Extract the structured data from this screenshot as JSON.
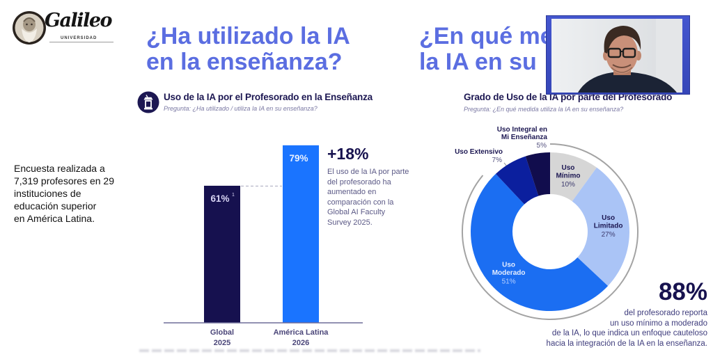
{
  "logo": {
    "name": "Galileo",
    "subtitle": "UNIVERSIDAD"
  },
  "intro": {
    "lines": [
      "Encuesta realizada a",
      "7,319 profesores en 29",
      "instituciones de",
      "educación superior",
      "en América Latina."
    ]
  },
  "headings": {
    "left": {
      "line1": "¿Ha utilizado la IA",
      "line2": "en la enseñanza?"
    },
    "right": {
      "line1": "¿En qué me",
      "line2": "la IA en su"
    }
  },
  "left_panel": {
    "icon": "lectern-icon",
    "title": "Uso de la IA por el Profesorado en la Enseñanza",
    "question": "Pregunta: ¿Ha utilizado / utiliza la IA en su enseñanza?",
    "highlight": {
      "value": "+18%",
      "lines": [
        "El uso de la IA por parte",
        "del profesorado ha",
        "aumentado en",
        "comparación con la",
        "Global AI Faculty",
        "Survey 2025."
      ]
    }
  },
  "right_panel": {
    "title": "Grado de Uso de la IA por parte del Profesorado",
    "question": "Pregunta: ¿En qué medida utiliza la IA en su enseñanza?",
    "highlight": {
      "value": "88%",
      "lines": [
        "del profesorado reporta",
        "un uso mínimo a moderado",
        "de la IA, lo que indica un enfoque cauteloso",
        "hacia la integración de la IA en la enseñanza."
      ]
    }
  },
  "theme": {
    "heading_color": "#5b6ee1",
    "navy": "#17124f",
    "webcam_border": "#3f51c6"
  },
  "chart_data": [
    {
      "type": "bar",
      "title": "Uso de la IA por el Profesorado en la Enseñanza",
      "subtitle": "Pregunta: ¿Ha utilizado / utiliza la IA en su enseñanza?",
      "categories": [
        "Global 2025",
        "América Latina 2026"
      ],
      "category_lines": [
        [
          "Global",
          "2025"
        ],
        [
          "América Latina",
          "2026"
        ]
      ],
      "values": [
        61,
        79
      ],
      "value_labels": [
        "61%",
        "79%"
      ],
      "footnote_marker": "1",
      "unit": "%",
      "colors": [
        "#16114f",
        "#1a74ff"
      ],
      "xlabel": "",
      "ylabel": "",
      "ylim": [
        0,
        100
      ],
      "grid": false,
      "annotation": "+18%"
    },
    {
      "type": "pie",
      "style": "donut",
      "title": "Grado de Uso de la IA por parte del Profesorado",
      "subtitle": "Pregunta: ¿En qué medida utiliza la IA en su enseñanza?",
      "categories": [
        "Uso Mínimo",
        "Uso Limitado",
        "Uso Moderado",
        "Uso Extensivo",
        "Uso Integral en Mi Enseñanza"
      ],
      "label_lines": [
        [
          "Uso",
          "Mínimo"
        ],
        [
          "Uso",
          "Limitado"
        ],
        [
          "Uso",
          "Moderado"
        ],
        [
          "Uso Extensivo"
        ],
        [
          "Uso Integral en",
          "Mi Enseñanza"
        ]
      ],
      "values": [
        10,
        27,
        51,
        7,
        5
      ],
      "value_labels": [
        "10%",
        "27%",
        "51%",
        "7%",
        "5%"
      ],
      "colors": [
        "#d6d6d6",
        "#aac4f6",
        "#1b6ef2",
        "#0b1f9e",
        "#110d4d"
      ],
      "start": "12 o'clock",
      "direction": "clockwise",
      "annotation": "88%"
    }
  ]
}
